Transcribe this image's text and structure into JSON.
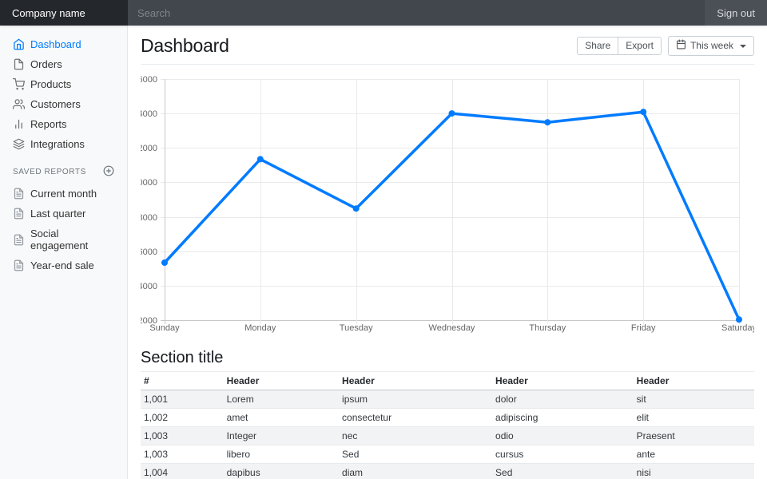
{
  "navbar": {
    "brand": "Company name",
    "search_placeholder": "Search",
    "sign_out_label": "Sign out"
  },
  "sidebar": {
    "items": [
      {
        "label": "Dashboard",
        "icon": "home",
        "active": true
      },
      {
        "label": "Orders",
        "icon": "file",
        "active": false
      },
      {
        "label": "Products",
        "icon": "shopping-cart",
        "active": false
      },
      {
        "label": "Customers",
        "icon": "users",
        "active": false
      },
      {
        "label": "Reports",
        "icon": "bar-chart",
        "active": false
      },
      {
        "label": "Integrations",
        "icon": "layers",
        "active": false
      }
    ],
    "saved_reports": {
      "heading": "SAVED REPORTS",
      "add_icon": "plus-circle",
      "items": [
        {
          "label": "Current month",
          "icon": "file-text"
        },
        {
          "label": "Last quarter",
          "icon": "file-text"
        },
        {
          "label": "Social engagement",
          "icon": "file-text"
        },
        {
          "label": "Year-end sale",
          "icon": "file-text"
        }
      ]
    }
  },
  "page": {
    "title": "Dashboard",
    "toolbar": {
      "share_label": "Share",
      "export_label": "Export",
      "period_label": "This week",
      "period_icon": "calendar"
    },
    "section_title": "Section title"
  },
  "chart_data": {
    "type": "line",
    "x": [
      "Sunday",
      "Monday",
      "Tuesday",
      "Wednesday",
      "Thursday",
      "Friday",
      "Saturday"
    ],
    "series": [
      {
        "name": "This week",
        "values": [
          15339,
          21345,
          18483,
          24003,
          23489,
          24092,
          12034
        ]
      }
    ],
    "ylim": [
      12000,
      26000
    ],
    "ytick_step": 2000,
    "grid": true,
    "legend_position": "none",
    "line_color": "#007bff",
    "point_color": "#007bff"
  },
  "table": {
    "headers": [
      "#",
      "Header",
      "Header",
      "Header",
      "Header"
    ],
    "rows": [
      [
        "1,001",
        "Lorem",
        "ipsum",
        "dolor",
        "sit"
      ],
      [
        "1,002",
        "amet",
        "consectetur",
        "adipiscing",
        "elit"
      ],
      [
        "1,003",
        "Integer",
        "nec",
        "odio",
        "Praesent"
      ],
      [
        "1,003",
        "libero",
        "Sed",
        "cursus",
        "ante"
      ],
      [
        "1,004",
        "dapibus",
        "diam",
        "Sed",
        "nisi"
      ]
    ]
  },
  "colors": {
    "accent": "#007bff",
    "navbar_brand_bg": "#24272c",
    "sidebar_bg": "#f8f9fa",
    "table_stripe": "#f2f3f4"
  }
}
